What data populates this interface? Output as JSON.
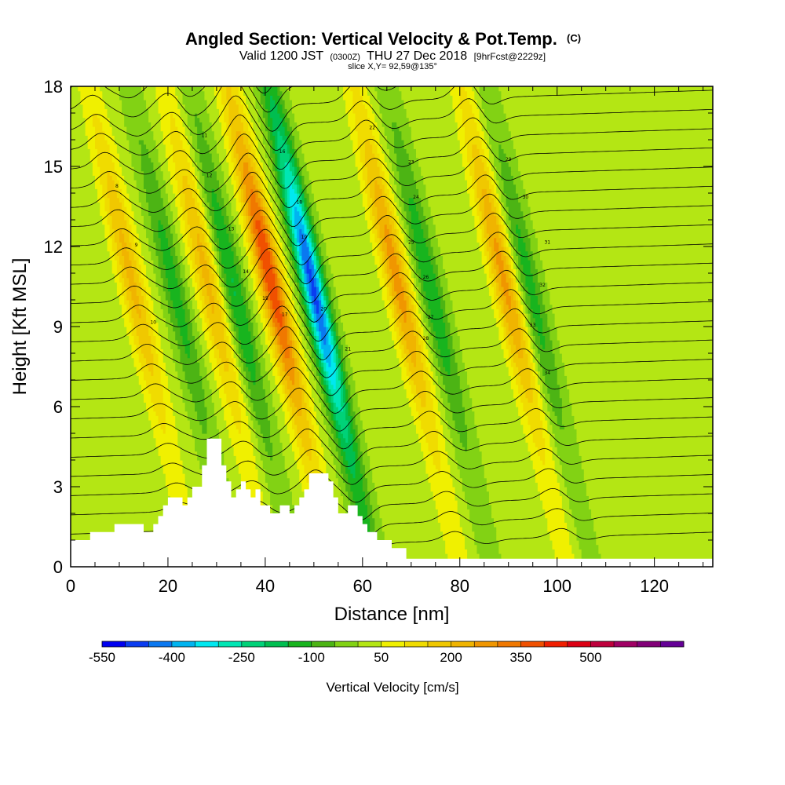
{
  "chart_data": {
    "type": "heatmap",
    "title": "Angled Section: Vertical Velocity & Pot.Temp.",
    "title_units": "(C)",
    "subtitle": {
      "valid": "Valid 1200 JST",
      "utc": "(0300Z)",
      "date": "THU 27 Dec 2018",
      "forecast": "[9hrFcst@2229z]"
    },
    "slice_text": "slice X,Y= 92,59@135°",
    "xlabel": "Distance [nm]",
    "ylabel": "Height [Kft MSL]",
    "xlim": [
      0,
      132
    ],
    "ylim": [
      0,
      18
    ],
    "x_ticks": [
      0,
      20,
      40,
      60,
      80,
      100,
      120
    ],
    "y_ticks": [
      0,
      3,
      6,
      9,
      12,
      15,
      18
    ],
    "colorbar": {
      "label": "Vertical Velocity [cm/s]",
      "tick_labels": [
        "-550",
        "-400",
        "-250",
        "-100",
        "50",
        "200",
        "350",
        "500"
      ],
      "colors": [
        "#0000f0",
        "#0a3cf0",
        "#0a78f0",
        "#00b4f0",
        "#00e8f0",
        "#00e6b4",
        "#00d278",
        "#00be50",
        "#18b41e",
        "#4cb414",
        "#82d214",
        "#b4e614",
        "#f0f000",
        "#f0dc00",
        "#f0c800",
        "#f0b400",
        "#f09600",
        "#f07800",
        "#f05000",
        "#f01e00",
        "#dc0014",
        "#be003c",
        "#a00064",
        "#820078",
        "#640096"
      ]
    },
    "updrafts": [
      {
        "x": 14.6,
        "peak": 200
      },
      {
        "x": 30.2,
        "peak": 200
      },
      {
        "x": 43.2,
        "peak": 380
      },
      {
        "x": 69.2,
        "peak": 260
      },
      {
        "x": 91.2,
        "peak": 250
      }
    ],
    "downdrafts": [
      {
        "x": 23.0,
        "peak": -140
      },
      {
        "x": 35.2,
        "peak": -170
      },
      {
        "x": 51.6,
        "peak": -480
      },
      {
        "x": 75.7,
        "peak": -160
      },
      {
        "x": 96.2,
        "peak": -140
      }
    ],
    "terrain": [
      [
        0,
        1.0
      ],
      [
        4,
        1.0
      ],
      [
        4,
        1.3
      ],
      [
        9,
        1.3
      ],
      [
        9,
        1.6
      ],
      [
        15,
        1.6
      ],
      [
        15,
        1.3
      ],
      [
        17,
        1.3
      ],
      [
        17,
        1.6
      ],
      [
        18,
        1.6
      ],
      [
        18,
        1.9
      ],
      [
        19,
        1.9
      ],
      [
        19,
        2.3
      ],
      [
        20,
        2.3
      ],
      [
        20,
        2.6
      ],
      [
        23,
        2.6
      ],
      [
        23,
        2.3
      ],
      [
        24,
        2.3
      ],
      [
        24,
        2.6
      ],
      [
        25,
        2.6
      ],
      [
        25,
        3.0
      ],
      [
        27,
        3.0
      ],
      [
        27,
        3.8
      ],
      [
        28,
        3.8
      ],
      [
        28,
        4.8
      ],
      [
        31,
        4.8
      ],
      [
        31,
        3.8
      ],
      [
        32,
        3.8
      ],
      [
        32,
        3.2
      ],
      [
        33,
        3.2
      ],
      [
        33,
        2.6
      ],
      [
        34,
        2.6
      ],
      [
        34,
        2.9
      ],
      [
        35,
        2.9
      ],
      [
        35,
        3.2
      ],
      [
        36,
        3.2
      ],
      [
        36,
        2.9
      ],
      [
        37,
        2.9
      ],
      [
        37,
        2.6
      ],
      [
        38,
        2.6
      ],
      [
        38,
        2.9
      ],
      [
        39,
        2.9
      ],
      [
        39,
        2.3
      ],
      [
        41,
        2.3
      ],
      [
        41,
        2.0
      ],
      [
        43,
        2.0
      ],
      [
        43,
        2.3
      ],
      [
        45,
        2.3
      ],
      [
        45,
        2.0
      ],
      [
        46,
        2.0
      ],
      [
        46,
        2.3
      ],
      [
        47,
        2.3
      ],
      [
        47,
        2.6
      ],
      [
        48,
        2.6
      ],
      [
        48,
        2.9
      ],
      [
        49,
        2.9
      ],
      [
        49,
        3.5
      ],
      [
        53,
        3.5
      ],
      [
        53,
        3.2
      ],
      [
        54,
        3.2
      ],
      [
        54,
        2.6
      ],
      [
        55,
        2.6
      ],
      [
        55,
        2.0
      ],
      [
        57,
        2.0
      ],
      [
        57,
        2.3
      ],
      [
        59,
        2.3
      ],
      [
        59,
        1.9
      ],
      [
        60,
        1.9
      ],
      [
        60,
        1.6
      ],
      [
        61,
        1.6
      ],
      [
        61,
        1.3
      ],
      [
        63,
        1.3
      ],
      [
        63,
        1.0
      ],
      [
        66,
        1.0
      ],
      [
        66,
        0.7
      ],
      [
        69,
        0.7
      ],
      [
        69,
        0.3
      ],
      [
        132,
        0.3
      ]
    ],
    "contour_labels": [
      "8",
      "9",
      "10",
      "11",
      "12",
      "13",
      "14",
      "15",
      "16",
      "17",
      "18",
      "19",
      "20",
      "21",
      "22",
      "23",
      "24",
      "25",
      "26",
      "27",
      "28",
      "29",
      "30",
      "31",
      "32",
      "33",
      "34"
    ]
  }
}
